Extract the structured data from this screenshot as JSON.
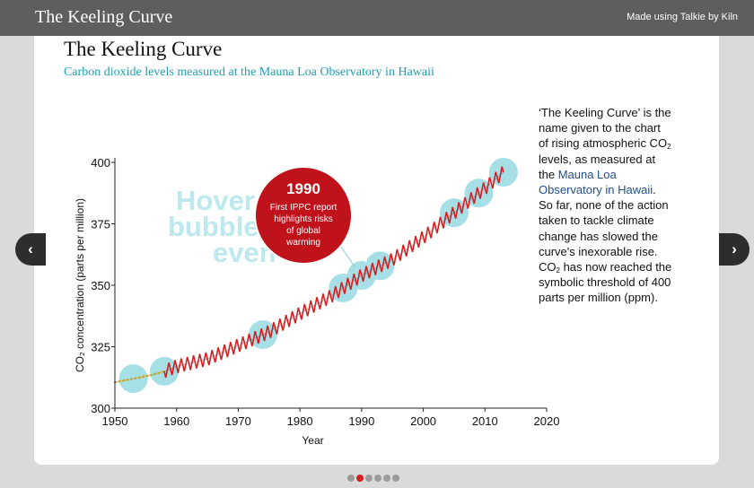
{
  "app": {
    "title": "The Keeling Curve",
    "made_using": "Made using Talkie by Kiln"
  },
  "nav": {
    "prev_icon": "chevron-left-icon",
    "next_icon": "chevron-right-icon",
    "prev_glyph": "‹",
    "next_glyph": "›"
  },
  "pager": {
    "count": 6,
    "active_index": 1
  },
  "side": {
    "p1": "‘The Keeling Curve’ is the name given to the chart of rising atmospheric CO",
    "sub1": "2",
    "p2": " levels, as measured at the ",
    "link": "Mauna Loa Observatory in Hawaii",
    "p3": ". So far, none of the action taken to tackle climate change has slowed the curve's inexorable rise. CO",
    "sub2": "2",
    "p4": " has now reached the symbolic threshold of 400 parts per million (ppm)."
  },
  "chart_data": {
    "type": "line",
    "title": "The Keeling Curve",
    "subtitle": "Carbon dioxide levels measured at the Mauna Loa Observatory in Hawaii",
    "xlabel": "Year",
    "ylabel": "CO₂ concentration (parts per million)",
    "xlim": [
      1950,
      2020
    ],
    "ylim": [
      300,
      400
    ],
    "xticks": [
      1950,
      1960,
      1970,
      1980,
      1990,
      2000,
      2010,
      2020
    ],
    "yticks": [
      300,
      325,
      350,
      375,
      400
    ],
    "grid": false,
    "colors": {
      "seasonal_line": "#d42020",
      "trend_line": "#8b3a52",
      "pre_record_dotted": "#c8a530",
      "bubble": "#a7dfe6",
      "highlight_bubble": "#c0121b",
      "accent_text": "#1e9fb5"
    },
    "series": [
      {
        "style": "seasonal",
        "x": [
          1958,
          1960,
          1965,
          1970,
          1975,
          1980,
          1985,
          1990,
          1995,
          2000,
          2005,
          2010,
          2013
        ],
        "values": [
          315,
          317,
          320,
          325.5,
          331,
          338.5,
          345.5,
          354,
          360.5,
          369.5,
          379.5,
          389.5,
          396
        ]
      },
      {
        "style": "dotted",
        "x": [
          1950,
          1953,
          1956,
          1958
        ],
        "values": [
          310.5,
          312,
          313.5,
          315
        ]
      }
    ],
    "bubbles": [
      1953,
      1958,
      1974,
      1987,
      1990,
      1993,
      2005,
      2009,
      2013
    ],
    "highlight": {
      "year": "1990",
      "text": [
        "First IPPC report",
        "highlights risks",
        "of global",
        "warming"
      ]
    },
    "watermark": [
      "Hover",
      "bubble",
      "even"
    ]
  }
}
